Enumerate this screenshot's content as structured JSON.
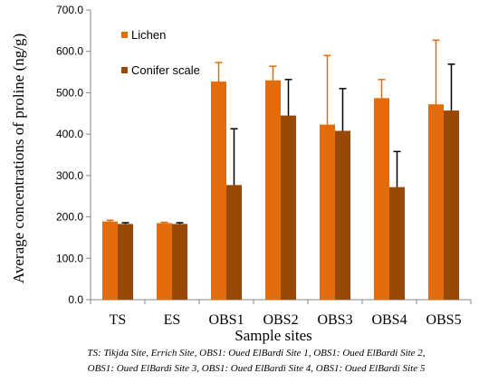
{
  "chart_data": {
    "type": "bar",
    "categories": [
      "TS",
      "ES",
      "OBS1",
      "OBS2",
      "OBS3",
      "OBS4",
      "OBS5"
    ],
    "series": [
      {
        "name": "Lichen",
        "color": "#E36C0A",
        "values": [
          189,
          185,
          527,
          530,
          423,
          487,
          472
        ],
        "errors": [
          3,
          2,
          46,
          34,
          167,
          45,
          155
        ]
      },
      {
        "name": "Conifer scale",
        "color": "#984807",
        "values": [
          183,
          183,
          277,
          445,
          408,
          272,
          457
        ],
        "errors": [
          3,
          3,
          136,
          87,
          102,
          86,
          112
        ]
      }
    ],
    "xlabel": "Sample sites",
    "ylabel": "Average concentrations of proline (ng/g)",
    "ylim": [
      0,
      700
    ],
    "yticks": [
      "0.0",
      "100.0",
      "200.0",
      "300.0",
      "400.0",
      "500.0",
      "600.0",
      "700.0"
    ],
    "grid": false,
    "legend_position": "top-left",
    "notes": [
      "TS: Tikjda Site, Errich Site, OBS1: Oued ElBardi Site 1, OBS1: Oued ElBardi Site 2,",
      "OBS1: Oued ElBardi Site 3, OBS1: Oued ElBardi Site 4, OBS1: Oued ElBardi Site 5"
    ]
  }
}
